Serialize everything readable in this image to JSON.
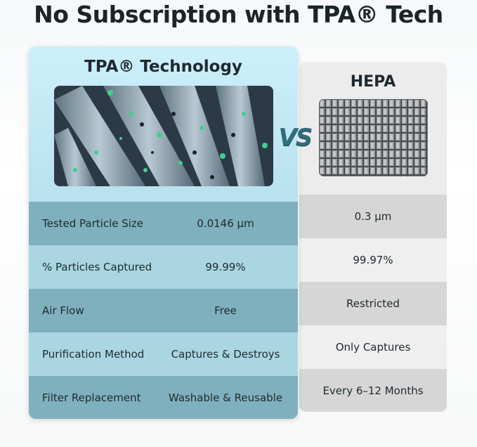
{
  "title": "No Subscription with TPA® Tech",
  "left": {
    "title": "TPA® Technology",
    "rows": [
      {
        "label": "Tested Particle Size",
        "value": "0.0146 μm"
      },
      {
        "label": "% Particles Captured",
        "value": "99.99%"
      },
      {
        "label": "Air Flow",
        "value": "Free"
      },
      {
        "label": "Purification Method",
        "value": "Captures & Destroys"
      },
      {
        "label": "Filter Replacement",
        "value": "Washable & Reusable"
      }
    ]
  },
  "vs": "VS",
  "right": {
    "title": "HEPA",
    "values": [
      "0.3 μm",
      "99.97%",
      "Restricted",
      "Only Captures",
      "Every 6–12 Months"
    ]
  }
}
